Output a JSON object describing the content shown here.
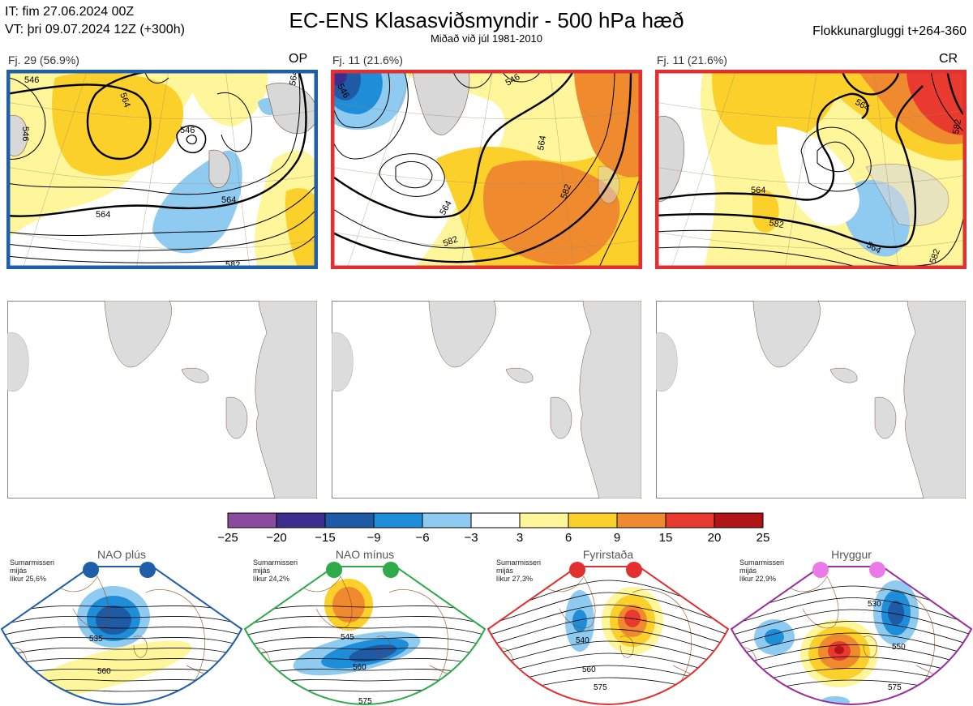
{
  "header": {
    "init_time": "IT: fim 27.06.2024 00Z",
    "valid_time": "VT: þri 09.07.2024 12Z  (+300h)",
    "title": "EC-ENS Klasasviðsmyndir - 500 hPa hæð",
    "subtitle": "Miðað við júl 1981-2010",
    "window": "Flokkunargluggi t+264-360"
  },
  "panels": [
    {
      "label": "Fj. 29 (56.9%)",
      "tag": "OP",
      "border": "#1f5fa8"
    },
    {
      "label": "Fj. 11 (21.6%)",
      "tag": "",
      "border": "#e23030"
    },
    {
      "label": "Fj. 11 (21.6%)",
      "tag": "CR",
      "border": "#e23030"
    }
  ],
  "contours": {
    "p1": [
      "546",
      "564",
      "546",
      "564",
      "564",
      "582",
      "546",
      "564"
    ],
    "p2": [
      "546",
      "564",
      "564",
      "582",
      "582",
      "546"
    ],
    "p3": [
      "564",
      "564",
      "582",
      "564",
      "582",
      "582"
    ]
  },
  "colorbar": {
    "ticks": [
      "−25",
      "−20",
      "−15",
      "−9",
      "−6",
      "−3",
      "3",
      "6",
      "9",
      "15",
      "20",
      "25"
    ],
    "colors": [
      "#8a4a9e",
      "#3b2e8f",
      "#1f5aa6",
      "#1e8ed8",
      "#8fcaf0",
      "#ffffff",
      "#fff59a",
      "#fcd02a",
      "#f08a2e",
      "#e83a2e",
      "#b01416"
    ]
  },
  "regimes": [
    {
      "name": "NAO plús",
      "note": [
        "Sumarmisseri",
        "mijás",
        "líkur 25,6%"
      ],
      "color": "#1f5fa8",
      "labels": [
        "535",
        "560"
      ]
    },
    {
      "name": "NAO mínus",
      "note": [
        "Sumarmisseri",
        "mijás",
        "líkur 24,2%"
      ],
      "color": "#2eaa4a",
      "labels": [
        "545",
        "560",
        "575"
      ]
    },
    {
      "name": "Fyrirstaða",
      "note": [
        "Sumarmisseri",
        "mijás",
        "líkur 27,3%"
      ],
      "color": "#e23030",
      "labels": [
        "540",
        "560",
        "575"
      ]
    },
    {
      "name": "Hryggur",
      "note": [
        "Sumarmisseri",
        "mijás",
        "líkur 22,9%"
      ],
      "color": "#9b2ea0",
      "labels": [
        "530",
        "550",
        "575"
      ]
    }
  ]
}
